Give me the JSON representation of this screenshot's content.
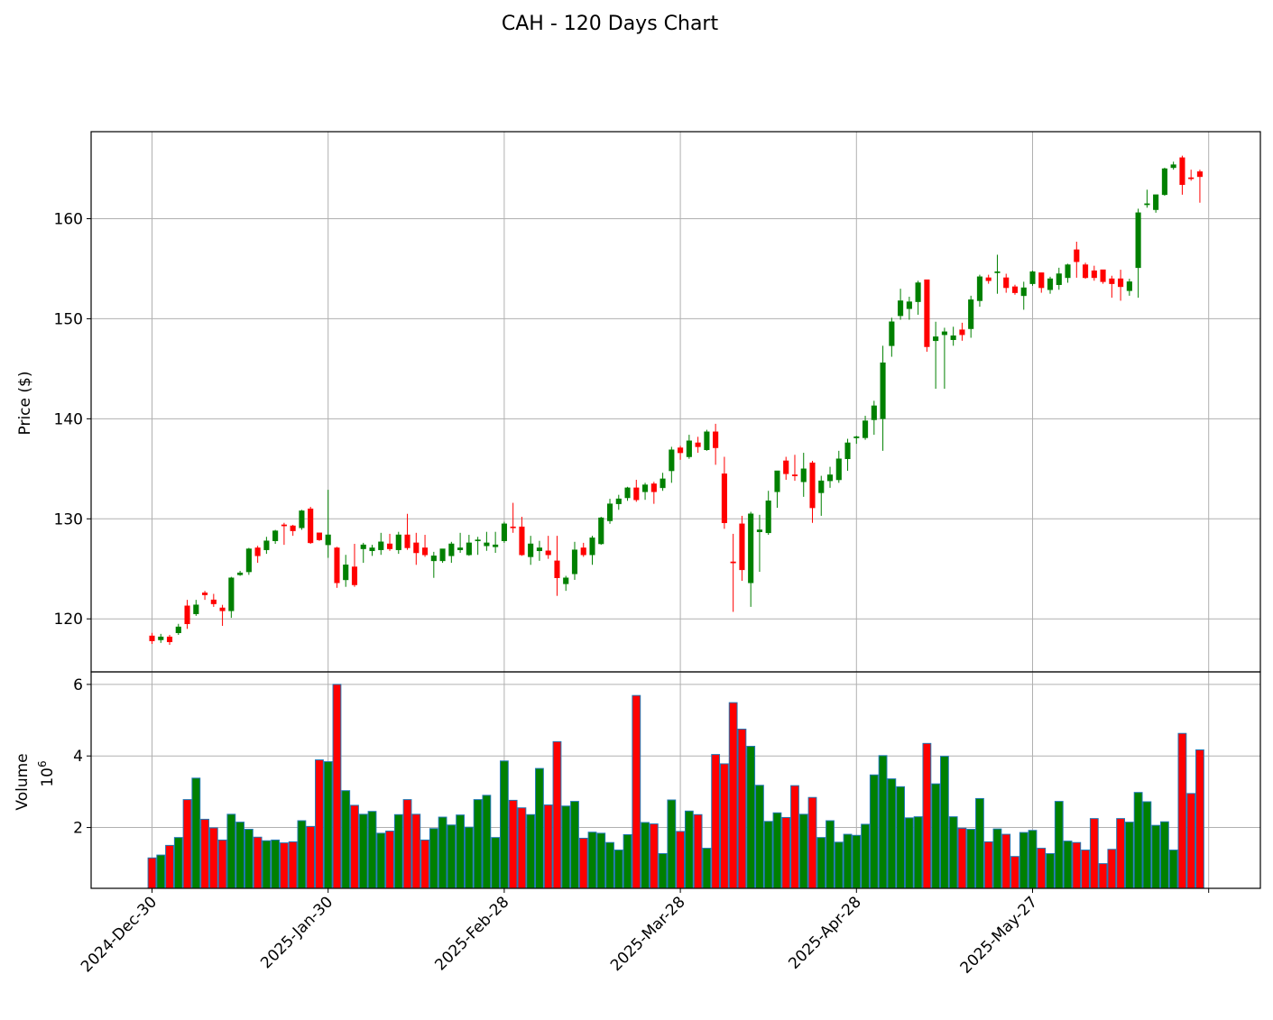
{
  "title": "CAH - 120 Days Chart",
  "colors": {
    "up": "#008000",
    "down": "#ff0000",
    "volume_edge": "#1f77b4",
    "grid": "#b0b0b0"
  },
  "chart_data": [
    {
      "type": "candlestick",
      "ylabel": "Price ($)",
      "ylim": [
        114.7,
        168.7
      ],
      "yticks": [
        120,
        130,
        140,
        150,
        160
      ],
      "grid": true,
      "x_tick_labels": [
        "2024-Dec-30",
        "2025-Jan-30",
        "2025-Feb-28",
        "2025-Mar-28",
        "2025-Apr-28",
        "2025-May-27"
      ],
      "x_tick_index": [
        0,
        20,
        40,
        60,
        80,
        100,
        120
      ],
      "ohlc": [
        [
          118.3,
          118.6,
          117.5,
          117.8
        ],
        [
          117.9,
          118.5,
          117.6,
          118.2
        ],
        [
          118.2,
          118.4,
          117.4,
          117.7
        ],
        [
          118.6,
          119.5,
          118.4,
          119.2
        ],
        [
          121.3,
          121.9,
          119,
          119.5
        ],
        [
          120.5,
          121.9,
          120.3,
          121.4
        ],
        [
          122.6,
          122.8,
          121.9,
          122.4
        ],
        [
          121.9,
          122.5,
          121.2,
          121.5
        ],
        [
          121.1,
          121.4,
          119.3,
          120.8
        ],
        [
          120.8,
          124.2,
          120.1,
          124.1
        ],
        [
          124.4,
          124.8,
          124.3,
          124.6
        ],
        [
          124.7,
          127.1,
          124.4,
          127
        ],
        [
          127.1,
          127.3,
          125.6,
          126.3
        ],
        [
          126.9,
          128.2,
          126.5,
          127.8
        ],
        [
          127.8,
          128.9,
          127.5,
          128.8
        ],
        [
          129.4,
          129.6,
          127.4,
          129.3
        ],
        [
          129.3,
          129.4,
          128.3,
          128.8
        ],
        [
          129.1,
          130.9,
          128.9,
          130.8
        ],
        [
          131,
          131.2,
          127.5,
          127.6
        ],
        [
          128.6,
          128.6,
          127.8,
          127.9
        ],
        [
          127.4,
          132.9,
          126.1,
          128.4
        ],
        [
          127.1,
          127.2,
          123.1,
          123.6
        ],
        [
          123.9,
          126.4,
          123.2,
          125.4
        ],
        [
          125.2,
          127.5,
          123.2,
          123.4
        ],
        [
          127,
          127.6,
          125.6,
          127.4
        ],
        [
          126.8,
          127.4,
          126.3,
          127.1
        ],
        [
          126.9,
          128.6,
          126.4,
          127.7
        ],
        [
          127.5,
          128.5,
          126.8,
          127
        ],
        [
          126.9,
          128.7,
          126.5,
          128.4
        ],
        [
          128.4,
          130.5,
          126.9,
          127.1
        ],
        [
          127.6,
          128.6,
          125.4,
          126.6
        ],
        [
          127.1,
          128.4,
          126.2,
          126.4
        ],
        [
          125.8,
          126.7,
          124.1,
          126.3
        ],
        [
          125.8,
          127,
          125.6,
          127
        ],
        [
          126.3,
          127.7,
          125.6,
          127.5
        ],
        [
          126.9,
          128.6,
          126.6,
          127.1
        ],
        [
          126.4,
          128.4,
          126.3,
          127.6
        ],
        [
          127.8,
          128.2,
          126.4,
          127.9
        ],
        [
          127.3,
          128.7,
          126.8,
          127.6
        ],
        [
          127.2,
          128.7,
          126.6,
          127.4
        ],
        [
          127.8,
          129.7,
          127.6,
          129.5
        ],
        [
          129.2,
          131.6,
          128.6,
          129.1
        ],
        [
          129.2,
          130.2,
          126.3,
          126.4
        ],
        [
          126.2,
          128.3,
          125.4,
          127.5
        ],
        [
          126.8,
          127.8,
          125.8,
          127.1
        ],
        [
          126.8,
          128.3,
          126,
          126.4
        ],
        [
          125.8,
          128.3,
          122.3,
          124.1
        ],
        [
          123.5,
          124.3,
          122.8,
          124.1
        ],
        [
          124.5,
          127.7,
          123.9,
          126.9
        ],
        [
          127.1,
          127.6,
          126.2,
          126.4
        ],
        [
          126.4,
          128.3,
          125.4,
          128.1
        ],
        [
          127.5,
          130.2,
          127.4,
          130.1
        ],
        [
          129.8,
          132,
          129.5,
          131.5
        ],
        [
          131.5,
          132.4,
          130.9,
          132
        ],
        [
          132.1,
          133.2,
          131.8,
          133.1
        ],
        [
          133.1,
          133.9,
          131.7,
          131.9
        ],
        [
          132.7,
          133.6,
          131.9,
          133.4
        ],
        [
          133.5,
          133.7,
          131.5,
          132.7
        ],
        [
          133.1,
          134.6,
          132.8,
          134
        ],
        [
          134.8,
          137.2,
          133.6,
          136.9
        ],
        [
          137.1,
          137.3,
          135.9,
          136.6
        ],
        [
          136.2,
          138.4,
          136,
          137.8
        ],
        [
          137.6,
          138.2,
          136.6,
          137.2
        ],
        [
          136.9,
          138.9,
          136.8,
          138.7
        ],
        [
          138.7,
          139.5,
          135.4,
          137.1
        ],
        [
          134.5,
          136.2,
          129,
          129.6
        ],
        [
          125.7,
          128.5,
          120.7,
          125.6
        ],
        [
          129.5,
          130.3,
          123.8,
          124.9
        ],
        [
          123.6,
          130.7,
          121.2,
          130.5
        ],
        [
          128.7,
          130.4,
          124.7,
          128.9
        ],
        [
          128.6,
          132.8,
          128.4,
          131.8
        ],
        [
          132.7,
          134.8,
          131.1,
          134.8
        ],
        [
          135.8,
          136.2,
          133.9,
          134.5
        ],
        [
          134.4,
          136.4,
          133.8,
          134.3
        ],
        [
          133.7,
          136.6,
          132.2,
          135
        ],
        [
          135.6,
          135.8,
          129.6,
          131.1
        ],
        [
          132.6,
          134.3,
          130.3,
          133.8
        ],
        [
          133.8,
          135.2,
          133.1,
          134.4
        ],
        [
          133.9,
          136.8,
          133.6,
          136
        ],
        [
          136,
          138,
          134.8,
          137.6
        ],
        [
          138.1,
          138.3,
          137.5,
          138.2
        ],
        [
          138.1,
          140.3,
          137.9,
          139.8
        ],
        [
          139.9,
          141.8,
          138.4,
          141.3
        ],
        [
          140,
          147.3,
          136.8,
          145.6
        ],
        [
          147.3,
          150.1,
          146.2,
          149.7
        ],
        [
          150.3,
          153,
          149.9,
          151.8
        ],
        [
          151,
          152.2,
          149.9,
          151.7
        ],
        [
          151.7,
          153.8,
          150.4,
          153.6
        ],
        [
          153.9,
          153.9,
          146.7,
          147.2
        ],
        [
          147.8,
          149.7,
          143,
          148.2
        ],
        [
          148.4,
          149.1,
          143,
          148.7
        ],
        [
          147.9,
          149.2,
          147.3,
          148.3
        ],
        [
          148.9,
          149.6,
          147.8,
          148.4
        ],
        [
          149,
          152.3,
          148.1,
          151.9
        ],
        [
          151.8,
          154.4,
          151.2,
          154.2
        ],
        [
          154.1,
          154.4,
          153.5,
          153.8
        ],
        [
          154.6,
          156.4,
          152.5,
          154.7
        ],
        [
          154.1,
          154.5,
          152.6,
          153.1
        ],
        [
          153.2,
          153.4,
          152.4,
          152.6
        ],
        [
          152.3,
          153.7,
          150.9,
          153.1
        ],
        [
          153.5,
          154.8,
          153.3,
          154.7
        ],
        [
          154.6,
          154.6,
          152.6,
          153.1
        ],
        [
          152.9,
          154.2,
          152.5,
          154
        ],
        [
          153.4,
          155.1,
          152.9,
          154.5
        ],
        [
          154.1,
          155.5,
          153.6,
          155.4
        ],
        [
          156.9,
          157.7,
          154.1,
          155.7
        ],
        [
          155.4,
          155.6,
          154,
          154.1
        ],
        [
          154.8,
          155.3,
          153.8,
          154.1
        ],
        [
          154.9,
          154.9,
          153.5,
          153.7
        ],
        [
          154,
          154.3,
          152.1,
          153.5
        ],
        [
          154,
          154.9,
          151.8,
          153.2
        ],
        [
          152.8,
          154,
          152.3,
          153.7
        ],
        [
          155.1,
          161,
          152.1,
          160.6
        ],
        [
          161.4,
          162.9,
          161.1,
          161.5
        ],
        [
          160.9,
          162.4,
          160.6,
          162.4
        ],
        [
          162.4,
          165.1,
          162.3,
          165
        ],
        [
          165.1,
          165.7,
          164.9,
          165.4
        ],
        [
          166.1,
          166.3,
          162.4,
          163.4
        ],
        [
          164.1,
          164.9,
          163.8,
          164
        ],
        [
          164.7,
          164.9,
          161.6,
          164.2
        ]
      ]
    },
    {
      "type": "bar",
      "ylabel": "Volume",
      "yscale_label": "10",
      "yscale_exponent": "6",
      "ylim": [
        0.3,
        6.35
      ],
      "yticks": [
        2,
        4,
        6
      ],
      "grid": true,
      "values": [
        1.15,
        1.23,
        1.5,
        1.72,
        2.78,
        3.38,
        2.23,
        1.99,
        1.65,
        2.37,
        2.15,
        1.95,
        1.73,
        1.63,
        1.65,
        1.57,
        1.6,
        2.19,
        2.03,
        3.89,
        3.84,
        6,
        3.03,
        2.62,
        2.37,
        2.45,
        1.84,
        1.9,
        2.36,
        2.78,
        2.37,
        1.65,
        1.97,
        2.29,
        2.07,
        2.35,
        2.01,
        2.78,
        2.9,
        1.72,
        3.86,
        2.76,
        2.55,
        2.36,
        3.65,
        2.63,
        4.4,
        2.6,
        2.73,
        1.7,
        1.87,
        1.84,
        1.58,
        1.37,
        1.8,
        5.69,
        2.14,
        2.1,
        1.27,
        2.77,
        1.89,
        2.46,
        2.36,
        1.42,
        4.04,
        3.78,
        5.49,
        4.75,
        4.27,
        3.18,
        2.17,
        2.41,
        2.28,
        3.17,
        2.37,
        2.84,
        1.72,
        2.19,
        1.59,
        1.81,
        1.78,
        2.09,
        3.47,
        4.01,
        3.36,
        3.14,
        2.27,
        2.3,
        4.35,
        3.22,
        3.99,
        2.3,
        1.98,
        1.95,
        2.81,
        1.6,
        1.96,
        1.81,
        1.19,
        1.86,
        1.92,
        1.42,
        1.27,
        2.73,
        1.62,
        1.58,
        1.37,
        2.25,
        0.99,
        1.39,
        2.25,
        2.15,
        2.98,
        2.72,
        2.06,
        2.16,
        1.37,
        4.63,
        2.95,
        4.17
      ]
    }
  ]
}
